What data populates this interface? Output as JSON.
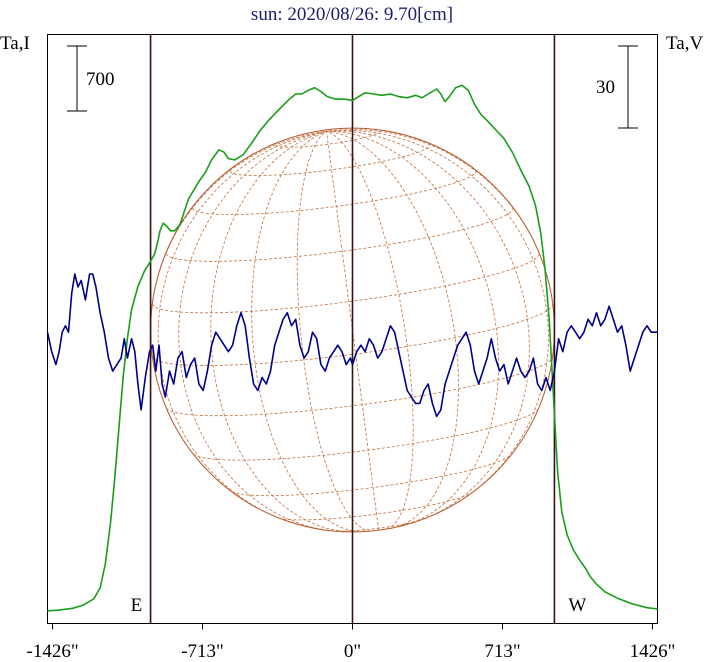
{
  "chart_data": {
    "type": "line",
    "title": "sun: 2020/08/26: 9.70[cm]",
    "left_axis_label": "Ta,I",
    "right_axis_label": "Ta,V",
    "left_scale_bar": 700,
    "right_scale_bar": 30,
    "x_unit": "arcsec",
    "xlim": [
      -1450,
      1450
    ],
    "x_ticks": [
      -1426,
      -713,
      0,
      713,
      1426
    ],
    "x_tick_labels": [
      "-1426\"",
      "-713\"",
      "0\"",
      "713\"",
      "1426\""
    ],
    "limb_markers": [
      {
        "label": "E",
        "x": -960
      },
      {
        "label": "W",
        "x": 960
      }
    ],
    "center_line_x": 0,
    "grid": false,
    "series": [
      {
        "name": "",
        "axis": "left",
        "color": "#1a9e1a",
        "points": [
          [
            -1450,
            0
          ],
          [
            -1400,
            5
          ],
          [
            -1330,
            20
          ],
          [
            -1280,
            45
          ],
          [
            -1230,
            95
          ],
          [
            -1200,
            180
          ],
          [
            -1175,
            370
          ],
          [
            -1150,
            700
          ],
          [
            -1130,
            1050
          ],
          [
            -1110,
            1450
          ],
          [
            -1090,
            1850
          ],
          [
            -1070,
            2150
          ],
          [
            -1050,
            2380
          ],
          [
            -1020,
            2560
          ],
          [
            -990,
            2680
          ],
          [
            -960,
            2760
          ],
          [
            -940,
            2820
          ],
          [
            -925,
            2920
          ],
          [
            -915,
            3000
          ],
          [
            -900,
            3060
          ],
          [
            -885,
            3040
          ],
          [
            -865,
            3000
          ],
          [
            -845,
            3000
          ],
          [
            -820,
            3050
          ],
          [
            -800,
            3150
          ],
          [
            -780,
            3250
          ],
          [
            -755,
            3320
          ],
          [
            -730,
            3390
          ],
          [
            -700,
            3460
          ],
          [
            -670,
            3560
          ],
          [
            -635,
            3640
          ],
          [
            -610,
            3620
          ],
          [
            -590,
            3570
          ],
          [
            -560,
            3560
          ],
          [
            -520,
            3600
          ],
          [
            -480,
            3690
          ],
          [
            -440,
            3790
          ],
          [
            -400,
            3870
          ],
          [
            -360,
            3940
          ],
          [
            -330,
            3990
          ],
          [
            -300,
            4040
          ],
          [
            -270,
            4080
          ],
          [
            -240,
            4080
          ],
          [
            -210,
            4110
          ],
          [
            -180,
            4130
          ],
          [
            -150,
            4100
          ],
          [
            -120,
            4060
          ],
          [
            -80,
            4040
          ],
          [
            -40,
            4040
          ],
          [
            0,
            4030
          ],
          [
            30,
            4060
          ],
          [
            60,
            4090
          ],
          [
            100,
            4080
          ],
          [
            140,
            4070
          ],
          [
            180,
            4080
          ],
          [
            220,
            4060
          ],
          [
            260,
            4050
          ],
          [
            300,
            4070
          ],
          [
            330,
            4050
          ],
          [
            360,
            4080
          ],
          [
            400,
            4120
          ],
          [
            420,
            4080
          ],
          [
            440,
            4020
          ],
          [
            460,
            4060
          ],
          [
            490,
            4130
          ],
          [
            520,
            4150
          ],
          [
            550,
            4110
          ],
          [
            580,
            4000
          ],
          [
            610,
            3920
          ],
          [
            640,
            3870
          ],
          [
            680,
            3800
          ],
          [
            720,
            3730
          ],
          [
            760,
            3620
          ],
          [
            800,
            3480
          ],
          [
            840,
            3350
          ],
          [
            870,
            3200
          ],
          [
            895,
            2980
          ],
          [
            915,
            2700
          ],
          [
            935,
            2300
          ],
          [
            955,
            1700
          ],
          [
            975,
            1100
          ],
          [
            995,
            780
          ],
          [
            1020,
            600
          ],
          [
            1050,
            480
          ],
          [
            1080,
            400
          ],
          [
            1110,
            330
          ],
          [
            1130,
            270
          ],
          [
            1160,
            210
          ],
          [
            1200,
            150
          ],
          [
            1260,
            100
          ],
          [
            1330,
            55
          ],
          [
            1400,
            25
          ],
          [
            1450,
            15
          ]
        ]
      },
      {
        "name": "",
        "axis": "right",
        "color": "#00008b",
        "points": [
          [
            -1450,
            0
          ],
          [
            -1430,
            -3
          ],
          [
            -1410,
            -5
          ],
          [
            -1395,
            -3
          ],
          [
            -1380,
            0
          ],
          [
            -1365,
            1
          ],
          [
            -1350,
            0
          ],
          [
            -1335,
            6
          ],
          [
            -1320,
            9
          ],
          [
            -1305,
            7
          ],
          [
            -1290,
            8
          ],
          [
            -1270,
            5
          ],
          [
            -1250,
            9
          ],
          [
            -1235,
            9
          ],
          [
            -1220,
            7
          ],
          [
            -1200,
            3
          ],
          [
            -1180,
            0
          ],
          [
            -1160,
            -4
          ],
          [
            -1140,
            -6
          ],
          [
            -1120,
            -5
          ],
          [
            -1100,
            -4
          ],
          [
            -1085,
            -1
          ],
          [
            -1070,
            -4
          ],
          [
            -1050,
            -1
          ],
          [
            -1035,
            -3
          ],
          [
            -1020,
            -8
          ],
          [
            -1005,
            -12
          ],
          [
            -985,
            -7
          ],
          [
            -965,
            -3
          ],
          [
            -950,
            -2
          ],
          [
            -935,
            -6
          ],
          [
            -920,
            -2
          ],
          [
            -905,
            -8
          ],
          [
            -890,
            -10
          ],
          [
            -870,
            -6
          ],
          [
            -850,
            -8
          ],
          [
            -830,
            -4
          ],
          [
            -810,
            -3
          ],
          [
            -790,
            -7
          ],
          [
            -770,
            -5
          ],
          [
            -750,
            -4
          ],
          [
            -730,
            -8
          ],
          [
            -710,
            -9
          ],
          [
            -690,
            -6
          ],
          [
            -670,
            -2
          ],
          [
            -650,
            0
          ],
          [
            -630,
            -1
          ],
          [
            -610,
            -2
          ],
          [
            -590,
            -3
          ],
          [
            -570,
            -2
          ],
          [
            -550,
            1
          ],
          [
            -530,
            3
          ],
          [
            -510,
            1
          ],
          [
            -490,
            -4
          ],
          [
            -470,
            -8
          ],
          [
            -450,
            -9
          ],
          [
            -430,
            -7
          ],
          [
            -410,
            -8
          ],
          [
            -390,
            -6
          ],
          [
            -370,
            -2
          ],
          [
            -350,
            0
          ],
          [
            -330,
            2
          ],
          [
            -310,
            3
          ],
          [
            -290,
            1
          ],
          [
            -270,
            2
          ],
          [
            -250,
            -2
          ],
          [
            -230,
            -4
          ],
          [
            -210,
            -3
          ],
          [
            -190,
            0
          ],
          [
            -170,
            -1
          ],
          [
            -150,
            -5
          ],
          [
            -130,
            -6
          ],
          [
            -110,
            -4
          ],
          [
            -90,
            -3
          ],
          [
            -70,
            -2
          ],
          [
            -50,
            -3
          ],
          [
            -30,
            -5
          ],
          [
            -10,
            -4
          ],
          [
            0,
            -5
          ],
          [
            20,
            -3
          ],
          [
            40,
            -2
          ],
          [
            60,
            -3
          ],
          [
            80,
            -1
          ],
          [
            100,
            -2
          ],
          [
            120,
            -4
          ],
          [
            140,
            -3
          ],
          [
            160,
            -1
          ],
          [
            180,
            1
          ],
          [
            200,
            0
          ],
          [
            220,
            -3
          ],
          [
            240,
            -6
          ],
          [
            260,
            -9
          ],
          [
            280,
            -10
          ],
          [
            300,
            -11
          ],
          [
            320,
            -11
          ],
          [
            340,
            -9
          ],
          [
            360,
            -8
          ],
          [
            380,
            -11
          ],
          [
            400,
            -13
          ],
          [
            420,
            -12
          ],
          [
            440,
            -8
          ],
          [
            460,
            -6
          ],
          [
            480,
            -4
          ],
          [
            500,
            -2
          ],
          [
            520,
            -1
          ],
          [
            540,
            0
          ],
          [
            560,
            -2
          ],
          [
            580,
            -6
          ],
          [
            600,
            -8
          ],
          [
            620,
            -6
          ],
          [
            640,
            -4
          ],
          [
            660,
            -1
          ],
          [
            680,
            -4
          ],
          [
            700,
            -6
          ],
          [
            720,
            -5
          ],
          [
            740,
            -8
          ],
          [
            760,
            -6
          ],
          [
            780,
            -4
          ],
          [
            800,
            -6
          ],
          [
            820,
            -7
          ],
          [
            840,
            -6
          ],
          [
            860,
            -4
          ],
          [
            880,
            -8
          ],
          [
            900,
            -9
          ],
          [
            920,
            -7
          ],
          [
            940,
            -9
          ],
          [
            960,
            -6
          ],
          [
            980,
            -1
          ],
          [
            1000,
            -3
          ],
          [
            1020,
            0
          ],
          [
            1040,
            1
          ],
          [
            1060,
            0
          ],
          [
            1080,
            -1
          ],
          [
            1100,
            0
          ],
          [
            1120,
            2
          ],
          [
            1140,
            1
          ],
          [
            1160,
            3
          ],
          [
            1180,
            1
          ],
          [
            1200,
            2
          ],
          [
            1220,
            4
          ],
          [
            1240,
            2
          ],
          [
            1260,
            0
          ],
          [
            1280,
            1
          ],
          [
            1300,
            -2
          ],
          [
            1320,
            -6
          ],
          [
            1340,
            -4
          ],
          [
            1360,
            -2
          ],
          [
            1380,
            0
          ],
          [
            1400,
            1
          ],
          [
            1420,
            0
          ],
          [
            1450,
            0
          ]
        ]
      }
    ],
    "left_ylim": [
      -100,
      4550
    ],
    "right_ylim": [
      -45,
      46
    ]
  },
  "colors": {
    "title": "#1c1c6e",
    "axis_text": "#000000",
    "vertical_lines": "#3a1010",
    "solar_disk": "#b5562c",
    "disk_grid": "#c0703c"
  },
  "solar_disk": {
    "radius_arcsec": 960,
    "grid": "dashed heliographic latitude/longitude"
  }
}
